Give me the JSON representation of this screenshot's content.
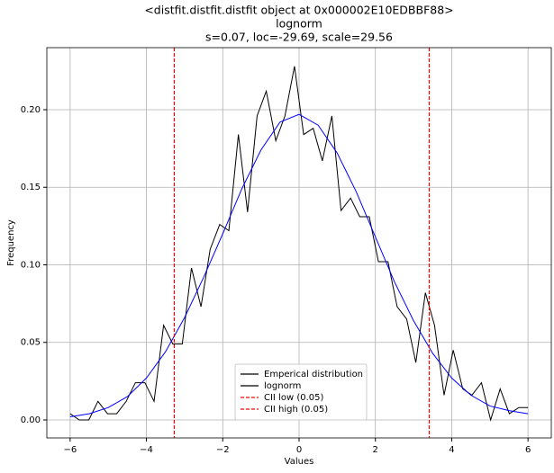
{
  "chart_data": {
    "type": "line",
    "title": [
      "<distfit.distfit.distfit object at 0x000002E10EDBBF88>",
      "lognorm",
      "s=0.07, loc=-29.69, scale=29.56"
    ],
    "xlabel": "Values",
    "ylabel": "Frequency",
    "xlim": [
      -6.61,
      6.61
    ],
    "ylim": [
      -0.0116,
      0.24
    ],
    "xticks": [
      {
        "value": -6,
        "label": "−6"
      },
      {
        "value": -4,
        "label": "−4"
      },
      {
        "value": -2,
        "label": "−2"
      },
      0,
      2,
      4,
      6
    ],
    "yticks": [
      {
        "value": 0,
        "label": "0.00"
      },
      0.05,
      {
        "value": 0.1,
        "label": "0.10"
      },
      0.15,
      {
        "value": 0.2,
        "label": "0.20"
      }
    ],
    "grid": true,
    "legend": "lower center",
    "series": [
      {
        "name": "Emperical distribution",
        "color": "#000000",
        "x": [
          -6.0,
          -5.76,
          -5.51,
          -5.27,
          -5.02,
          -4.78,
          -4.53,
          -4.29,
          -4.04,
          -3.8,
          -3.55,
          -3.31,
          -3.06,
          -2.82,
          -2.57,
          -2.33,
          -2.08,
          -1.84,
          -1.59,
          -1.35,
          -1.1,
          -0.86,
          -0.61,
          -0.37,
          -0.12,
          0.12,
          0.37,
          0.61,
          0.86,
          1.1,
          1.35,
          1.59,
          1.84,
          2.08,
          2.33,
          2.57,
          2.82,
          3.06,
          3.31,
          3.55,
          3.8,
          4.04,
          4.29,
          4.53,
          4.78,
          5.02,
          5.27,
          5.51,
          5.76,
          6.0
        ],
        "values": [
          0.004,
          0,
          0,
          0.012,
          0.004,
          0.004,
          0.012,
          0.024,
          0.024,
          0.012,
          0.061,
          0.049,
          0.049,
          0.098,
          0.073,
          0.11,
          0.126,
          0.122,
          0.184,
          0.134,
          0.196,
          0.212,
          0.18,
          0.196,
          0.228,
          0.184,
          0.188,
          0.167,
          0.196,
          0.135,
          0.143,
          0.131,
          0.131,
          0.102,
          0.102,
          0.073,
          0.065,
          0.037,
          0.082,
          0.061,
          0.016,
          0.045,
          0.02,
          0.016,
          0.024,
          0,
          0.02,
          0.004,
          0.008,
          0.008
        ]
      },
      {
        "name": "lognorm",
        "color": "#0000ff",
        "legend_color": "#000000",
        "x": [
          -6,
          -5.5,
          -5,
          -4.5,
          -4,
          -3.5,
          -3,
          -2.5,
          -2,
          -1.5,
          -1,
          -0.5,
          0,
          0.5,
          1,
          1.5,
          2,
          2.5,
          3,
          3.5,
          4,
          4.5,
          5,
          5.5,
          6
        ],
        "values": [
          0.002,
          0.004,
          0.008,
          0.015,
          0.027,
          0.044,
          0.066,
          0.092,
          0.12,
          0.149,
          0.174,
          0.192,
          0.197,
          0.19,
          0.172,
          0.147,
          0.118,
          0.089,
          0.064,
          0.043,
          0.027,
          0.016,
          0.009,
          0.006,
          0.004
        ]
      }
    ],
    "vlines": [
      {
        "name": "CII low (0.05)",
        "color": "#ff0000",
        "x": -3.27
      },
      {
        "name": "CII high (0.05)",
        "color": "#ff0000",
        "x": 3.41
      }
    ]
  }
}
